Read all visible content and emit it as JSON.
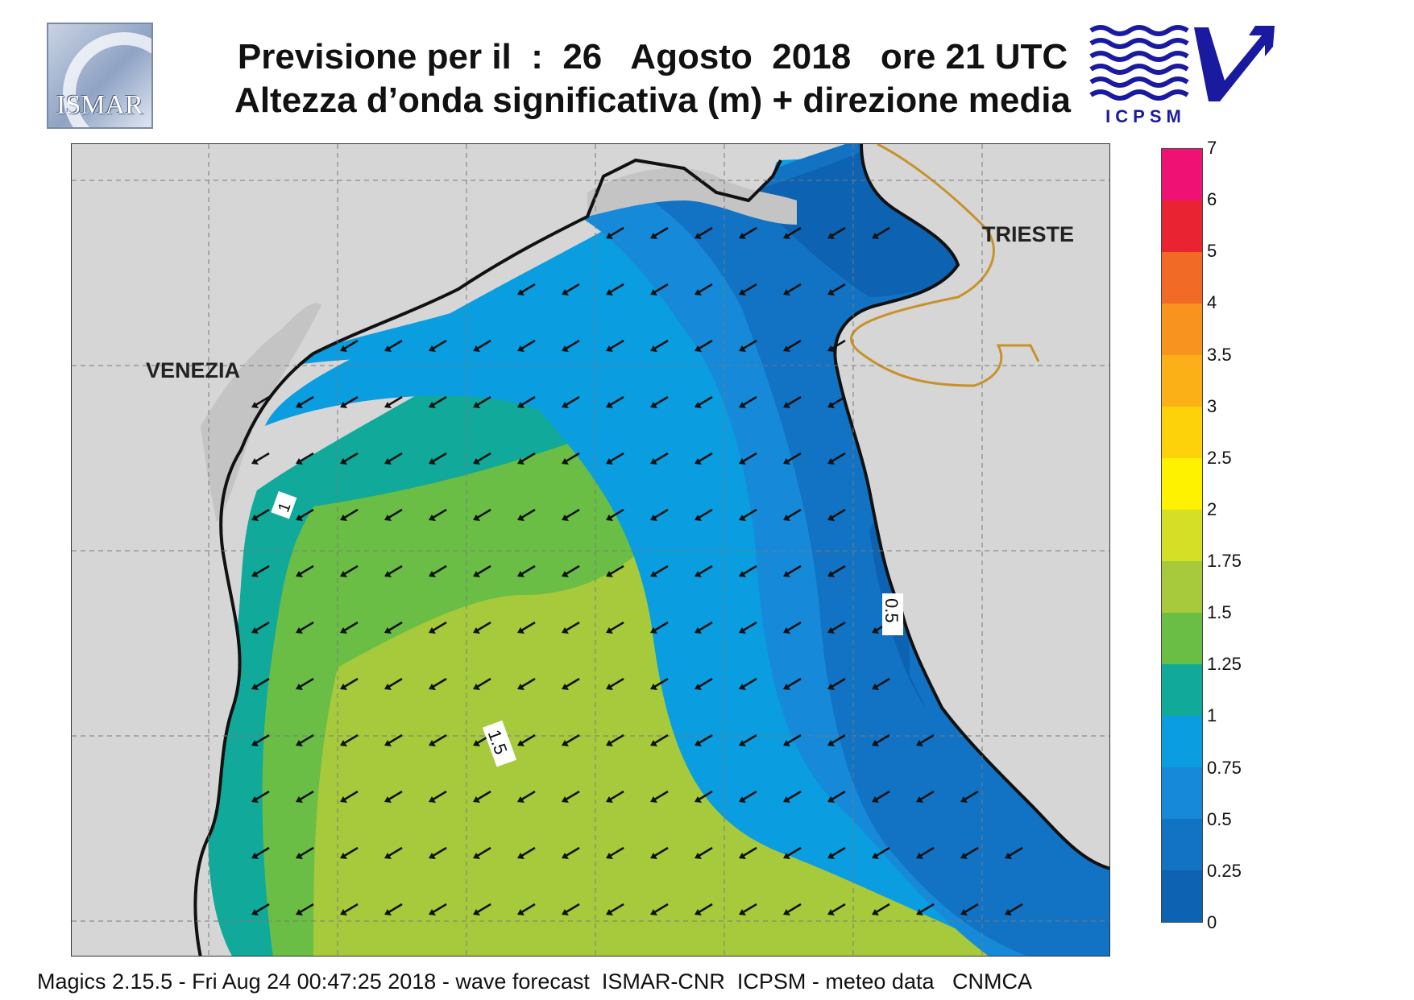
{
  "header": {
    "title_line1": "Previsione per il  :  26   Agosto  2018   ore 21 UTC",
    "title_line2": "Altezza d’onda significativa (m) + direzione media"
  },
  "logos": {
    "left": {
      "text": "ISMAR",
      "icon": "ismar-logo"
    },
    "right": {
      "text": "ICPSM",
      "icon": "icpsm-logo"
    }
  },
  "map": {
    "place_labels": {
      "venezia": "VENEZIA",
      "trieste": "TRIESTE"
    },
    "contour_labels": [
      "1",
      "0.5",
      "1.5"
    ],
    "arrow_direction": "south-west",
    "colors": {
      "land": "#d6d6d6",
      "coast": "#111111",
      "border": "#c8922a",
      "arrow": "#111111"
    }
  },
  "legend": {
    "labels": [
      "7",
      "6",
      "5",
      "4",
      "3.5",
      "3",
      "2.5",
      "2",
      "1.75",
      "1.5",
      "1.25",
      "1",
      "0.75",
      "0.5",
      "0.25",
      "0"
    ],
    "colors_top_to_bottom": [
      "#ef1274",
      "#ea2332",
      "#f26b26",
      "#f7931e",
      "#fbb017",
      "#fdd20b",
      "#fff200",
      "#d4df26",
      "#a6ca3b",
      "#6abd45",
      "#10a99a",
      "#0a9de0",
      "#1689d9",
      "#1273c4",
      "#0e62b2"
    ]
  },
  "footer": {
    "text": "Magics 2.15.5 - Fri Aug 24 00:47:25 2018 - wave forecast  ISMAR-CNR  ICPSM - meteo data   CNMCA"
  }
}
